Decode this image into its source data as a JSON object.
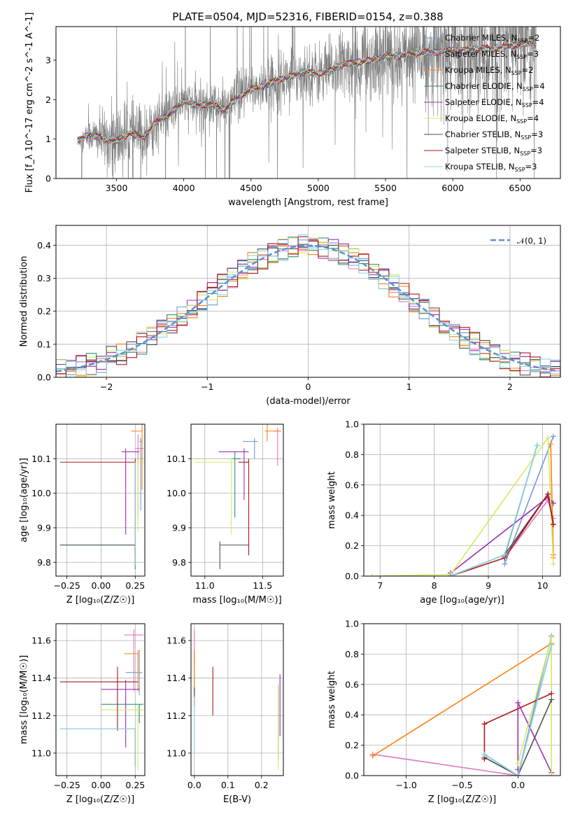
{
  "figure": {
    "title": "PLATE=0504, MJD=52316, FIBERID=0154, z=0.388"
  },
  "colors": {
    "Chabrier MILES": "#6f9bd8",
    "Salpeter MILES": "#e377c2",
    "Kroupa MILES": "#ff7f0e",
    "Chabrier ELODIE": "#2f8f76",
    "Salpeter ELODIE": "#9b30b0",
    "Kroupa ELODIE": "#d4ea62",
    "Chabrier STELIB": "#505050",
    "Salpeter STELIB": "#b0161a",
    "Kroupa STELIB": "#8ad4e3",
    "data_spectrum": "#7f7f7f"
  },
  "chart_data": [
    {
      "id": "spectrum",
      "type": "line",
      "xlabel": "wavelength [Angstrom, rest frame]",
      "ylabel": "Flux [f_λ 10^-17 erg cm^-2 s^-1 A^-1]",
      "xlim": [
        3050,
        6800
      ],
      "ylim": [
        0,
        3.85
      ],
      "xticks": [
        "3500",
        "4000",
        "4500",
        "5000",
        "5500",
        "6000",
        "6500"
      ],
      "yticks": [
        "0",
        "1",
        "2",
        "3"
      ],
      "grid": false,
      "legend_position": "upper-right",
      "legend": [
        {
          "name": "Chabrier MILES",
          "nssp": "2"
        },
        {
          "name": "Salpeter MILES",
          "nssp": "3"
        },
        {
          "name": "Kroupa MILES",
          "nssp": "2"
        },
        {
          "name": "Chabrier ELODIE",
          "nssp": "4"
        },
        {
          "name": "Salpeter ELODIE",
          "nssp": "4"
        },
        {
          "name": "Kroupa ELODIE",
          "nssp": "4"
        },
        {
          "name": "Chabrier STELIB",
          "nssp": "3"
        },
        {
          "name": "Salpeter STELIB",
          "nssp": "3"
        },
        {
          "name": "Kroupa STELIB",
          "nssp": "3"
        }
      ],
      "continuum": {
        "x": [
          3210,
          3300,
          3400,
          3500,
          3600,
          3700,
          3800,
          3900,
          4000,
          4100,
          4200,
          4300,
          4400,
          4500,
          4600,
          4700,
          4800,
          4900,
          5000,
          5100,
          5200,
          5300,
          5400,
          5500,
          5600,
          5700,
          5800,
          5900,
          6000,
          6100,
          6200,
          6300,
          6400,
          6500,
          6600
        ],
        "y": [
          0.95,
          1.1,
          1.0,
          0.95,
          1.15,
          1.05,
          1.45,
          1.65,
          1.95,
          1.85,
          1.9,
          1.75,
          2.05,
          2.25,
          2.35,
          2.5,
          2.6,
          2.7,
          2.65,
          2.75,
          2.9,
          2.95,
          3.0,
          3.1,
          3.1,
          3.15,
          3.2,
          3.2,
          3.25,
          3.25,
          3.3,
          3.3,
          3.35,
          3.4,
          3.45
        ]
      },
      "data_noise_envelope": {
        "x": [
          3210,
          3500,
          3800,
          4000,
          4500,
          5000,
          5500,
          6000,
          6600
        ],
        "sigma": [
          0.15,
          0.9,
          0.6,
          0.5,
          0.6,
          0.7,
          1.0,
          1.3,
          1.6
        ]
      }
    },
    {
      "id": "residuals",
      "type": "line",
      "xlabel": "(data-model)/error",
      "ylabel": "Normed distribution",
      "xlim": [
        -2.5,
        2.5
      ],
      "ylim": [
        0,
        0.46
      ],
      "xticks": [
        "−2",
        "−1",
        "0",
        "1",
        "2"
      ],
      "yticks": [
        "0.0",
        "0.1",
        "0.2",
        "0.3",
        "0.4"
      ],
      "grid": true,
      "legend_position": "upper-right",
      "legend_label": "𝒩(0, 1)",
      "gaussian": {
        "mu": 0,
        "sigma": 1
      },
      "histogram_bin_width": 0.1
    },
    {
      "id": "age_vs_Z",
      "type": "scatter",
      "xlabel": "Z [log₁₀(Z/Z☉)]",
      "ylabel": "age  [log₁₀(age/yr)]",
      "xlim": [
        -0.33,
        0.32
      ],
      "ylim": [
        9.76,
        10.2
      ],
      "xticks": [
        "−0.25",
        "0.00",
        "0.25"
      ],
      "yticks": [
        "9.8",
        "9.9",
        "10.0",
        "10.1"
      ],
      "grid": true,
      "points": [
        {
          "model": "Chabrier MILES",
          "x": 0.29,
          "y": 10.15,
          "xerr": [
            0.01,
            0.01
          ],
          "yerr": [
            0.2,
            0.01
          ]
        },
        {
          "model": "Salpeter MILES",
          "x": 0.27,
          "y": 10.13,
          "xerr": [
            0.02,
            0.04
          ],
          "yerr": [
            0.2,
            0.04
          ]
        },
        {
          "model": "Kroupa MILES",
          "x": 0.3,
          "y": 10.18,
          "xerr": [
            0.08,
            0.0
          ],
          "yerr": [
            0.17,
            0.02
          ]
        },
        {
          "model": "Chabrier ELODIE",
          "x": 0.25,
          "y": 9.85,
          "xerr": [
            0.55,
            0.0
          ],
          "yerr": [
            0.07,
            0.0
          ]
        },
        {
          "model": "Salpeter ELODIE",
          "x": 0.18,
          "y": 10.12,
          "xerr": [
            0.03,
            0.1
          ],
          "yerr": [
            0.24,
            0.01
          ]
        },
        {
          "model": "Kroupa ELODIE",
          "x": 0.27,
          "y": 10.09,
          "xerr": [
            0.0,
            0.05
          ],
          "yerr": [
            0.2,
            0.01
          ]
        },
        {
          "model": "Chabrier STELIB",
          "x": 0.25,
          "y": 9.85,
          "xerr": [
            0.55,
            0.0
          ],
          "yerr": [
            0.06,
            0.0
          ]
        },
        {
          "model": "Salpeter STELIB",
          "x": 0.25,
          "y": 10.09,
          "xerr": [
            0.55,
            0.0
          ],
          "yerr": [
            0.27,
            0.01
          ]
        },
        {
          "model": "Kroupa STELIB",
          "x": 0.25,
          "y": 10.09,
          "xerr": [
            0.0,
            0.0
          ],
          "yerr": [
            0.3,
            0.0
          ]
        }
      ]
    },
    {
      "id": "age_vs_mass",
      "type": "scatter",
      "xlabel": "mass [log₁₀(M/M☉)]",
      "ylabel": "",
      "xlim": [
        10.88,
        11.68
      ],
      "ylim": [
        9.76,
        10.2
      ],
      "xticks": [
        "11.0",
        "11.5"
      ],
      "yticks": [
        "9.8",
        "9.9",
        "10.0",
        "10.1"
      ],
      "grid": true,
      "points": [
        {
          "model": "Chabrier MILES",
          "x": 11.43,
          "y": 10.15,
          "xerr": [
            0.1,
            0.03
          ],
          "yerr": [
            0.05,
            0.01
          ]
        },
        {
          "model": "Salpeter MILES",
          "x": 11.63,
          "y": 10.18,
          "xerr": [
            0.03,
            0.03
          ],
          "yerr": [
            0.1,
            0.01
          ]
        },
        {
          "model": "Kroupa MILES",
          "x": 11.54,
          "y": 10.18,
          "xerr": [
            0.02,
            0.12
          ],
          "yerr": [
            0.03,
            0.02
          ]
        },
        {
          "model": "Chabrier ELODIE",
          "x": 11.26,
          "y": 10.1,
          "xerr": [
            0.02,
            0.05
          ],
          "yerr": [
            0.17,
            0.02
          ]
        },
        {
          "model": "Salpeter ELODIE",
          "x": 11.34,
          "y": 10.12,
          "xerr": [
            0.22,
            0.04
          ],
          "yerr": [
            0.14,
            0.01
          ]
        },
        {
          "model": "Kroupa ELODIE",
          "x": 11.23,
          "y": 10.09,
          "xerr": [
            0.32,
            0.02
          ],
          "yerr": [
            0.21,
            0.01
          ]
        },
        {
          "model": "Chabrier STELIB",
          "x": 11.13,
          "y": 9.85,
          "xerr": [
            0.0,
            0.25
          ],
          "yerr": [
            0.07,
            0.01
          ]
        },
        {
          "model": "Salpeter STELIB",
          "x": 11.38,
          "y": 10.09,
          "xerr": [
            0.09,
            0.0
          ],
          "yerr": [
            0.27,
            0.01
          ]
        },
        {
          "model": "Kroupa STELIB",
          "x": 11.13,
          "y": 9.85,
          "xerr": [
            0.0,
            0.0
          ],
          "yerr": [
            0.0,
            0.0
          ]
        }
      ]
    },
    {
      "id": "weight_vs_age",
      "type": "line",
      "xlabel": "age  [log₁₀(age/yr)]",
      "ylabel": "mass weight",
      "xlim": [
        6.7,
        10.33
      ],
      "ylim": [
        0,
        1
      ],
      "xticks": [
        "7",
        "8",
        "9",
        "10"
      ],
      "yticks": [
        "0.0",
        "0.2",
        "0.4",
        "0.6",
        "0.8",
        "1.0"
      ],
      "grid": true,
      "series": [
        {
          "model": "Chabrier MILES",
          "x": [
            9.3,
            10.2
          ],
          "y": [
            0.08,
            0.92
          ]
        },
        {
          "model": "Salpeter MILES",
          "x": [
            9.3,
            10.1,
            10.2
          ],
          "y": [
            0.12,
            0.5,
            0.38
          ]
        },
        {
          "model": "Kroupa MILES",
          "x": [
            10.15,
            10.2,
            10.2
          ],
          "y": [
            0.87,
            0.14,
            0.12
          ]
        },
        {
          "model": "Chabrier ELODIE",
          "x": [
            9.3,
            9.9
          ],
          "y": [
            0.13,
            0.86
          ]
        },
        {
          "model": "Salpeter ELODIE",
          "x": [
            8.3,
            10.1,
            10.2
          ],
          "y": [
            0.02,
            0.52,
            0.48
          ]
        },
        {
          "model": "Kroupa ELODIE",
          "x": [
            6.85,
            8.3,
            10.1,
            10.2
          ],
          "y": [
            0.0,
            0.01,
            0.91,
            0.08
          ]
        },
        {
          "model": "Chabrier STELIB",
          "x": [
            8.3,
            9.3,
            10.1,
            10.2
          ],
          "y": [
            0.0,
            0.14,
            0.54,
            0.34
          ]
        },
        {
          "model": "Salpeter STELIB",
          "x": [
            8.3,
            9.3,
            10.1,
            10.2
          ],
          "y": [
            0.0,
            0.12,
            0.54,
            0.34
          ]
        },
        {
          "model": "Kroupa STELIB",
          "x": [
            8.3,
            9.3,
            9.9
          ],
          "y": [
            0.0,
            0.14,
            0.86
          ]
        }
      ]
    },
    {
      "id": "mass_vs_Z",
      "type": "scatter",
      "xlabel": "Z [log₁₀(Z/Z☉)]",
      "ylabel": "mass [log₁₀(M/M☉)]",
      "xlim": [
        -0.33,
        0.32
      ],
      "ylim": [
        10.88,
        11.69
      ],
      "xticks": [
        "−0.25",
        "0.00",
        "0.25"
      ],
      "yticks": [
        "11.0",
        "11.2",
        "11.4",
        "11.6"
      ],
      "grid": true,
      "points": [
        {
          "model": "Chabrier MILES",
          "x": 0.28,
          "y": 11.43,
          "xerr": [
            0.1,
            0.02
          ],
          "yerr": [
            0.12,
            0.12
          ]
        },
        {
          "model": "Salpeter MILES",
          "x": 0.24,
          "y": 11.63,
          "xerr": [
            0.07,
            0.07
          ],
          "yerr": [
            0.3,
            0.03
          ]
        },
        {
          "model": "Kroupa MILES",
          "x": 0.27,
          "y": 11.53,
          "xerr": [
            0.1,
            0.0
          ],
          "yerr": [
            0.2,
            0.02
          ]
        },
        {
          "model": "Chabrier ELODIE",
          "x": 0.28,
          "y": 11.26,
          "xerr": [
            0.28,
            0.03
          ],
          "yerr": [
            0.1,
            0.0
          ]
        },
        {
          "model": "Salpeter ELODIE",
          "x": 0.18,
          "y": 11.34,
          "xerr": [
            0.18,
            0.1
          ],
          "yerr": [
            0.31,
            0.05
          ]
        },
        {
          "model": "Kroupa ELODIE",
          "x": 0.27,
          "y": 11.23,
          "xerr": [
            0.27,
            0.05
          ],
          "yerr": [
            0.32,
            0.02
          ]
        },
        {
          "model": "Chabrier STELIB",
          "x": 0.25,
          "y": 11.13,
          "xerr": [
            0.55,
            0.0
          ],
          "yerr": [
            0.2,
            0.0
          ]
        },
        {
          "model": "Salpeter STELIB",
          "x": 0.12,
          "y": 11.38,
          "xerr": [
            0.42,
            0.15
          ],
          "yerr": [
            0.26,
            0.08
          ]
        },
        {
          "model": "Kroupa STELIB",
          "x": 0.25,
          "y": 11.13,
          "xerr": [
            0.55,
            0.0
          ],
          "yerr": [
            0.22,
            0.0
          ]
        }
      ]
    },
    {
      "id": "mass_vs_ebv",
      "type": "scatter",
      "xlabel": "E(B-V)",
      "ylabel": "",
      "xlim": [
        -0.01,
        0.265
      ],
      "ylim": [
        10.88,
        11.69
      ],
      "xticks": [
        "0.0",
        "0.1",
        "0.2"
      ],
      "yticks": [
        "11.0",
        "11.2",
        "11.4",
        "11.6"
      ],
      "grid": true,
      "points": [
        {
          "model": "Chabrier MILES",
          "x": 0.0,
          "y": 11.43,
          "yerr": [
            0.12,
            0.12
          ]
        },
        {
          "model": "Salpeter MILES",
          "x": 0.0,
          "y": 11.63,
          "yerr": [
            0.15,
            0.03
          ]
        },
        {
          "model": "Kroupa MILES",
          "x": 0.0,
          "y": 11.5,
          "yerr": [
            0.18,
            0.05
          ]
        },
        {
          "model": "Chabrier ELODIE",
          "x": 0.25,
          "y": 11.26,
          "yerr": [
            0.3,
            0.1
          ]
        },
        {
          "model": "Salpeter ELODIE",
          "x": 0.255,
          "y": 11.34,
          "yerr": [
            0.25,
            0.08
          ]
        },
        {
          "model": "Kroupa ELODIE",
          "x": 0.25,
          "y": 11.23,
          "yerr": [
            0.32,
            0.14
          ]
        },
        {
          "model": "Chabrier STELIB",
          "x": 0.0,
          "y": 11.3,
          "yerr": [
            0.05,
            0.05
          ]
        },
        {
          "model": "Salpeter STELIB",
          "x": 0.055,
          "y": 11.32,
          "yerr": [
            0.12,
            0.14
          ]
        },
        {
          "model": "Kroupa STELIB",
          "x": 0.0,
          "y": 11.25,
          "yerr": [
            0.25,
            0.05
          ]
        }
      ]
    },
    {
      "id": "weight_vs_Z",
      "type": "line",
      "xlabel": "Z [log₁₀(Z/Z☉)]",
      "ylabel": "mass weight",
      "xlim": [
        -1.38,
        0.38
      ],
      "ylim": [
        0,
        1
      ],
      "xticks": [
        "−1.0",
        "−0.5",
        "0.0"
      ],
      "yticks": [
        "0.0",
        "0.2",
        "0.4",
        "0.6",
        "0.8",
        "1.0"
      ],
      "grid": true,
      "series": [
        {
          "model": "Chabrier MILES",
          "x": [
            -0.3,
            0.0,
            0.3
          ],
          "y": [
            0.14,
            0.0,
            0.92
          ]
        },
        {
          "model": "Salpeter MILES",
          "x": [
            -1.3,
            0.0,
            0.3
          ],
          "y": [
            0.14,
            0.0,
            0.86
          ]
        },
        {
          "model": "Kroupa MILES",
          "x": [
            -1.3,
            0.3
          ],
          "y": [
            0.13,
            0.87
          ]
        },
        {
          "model": "Chabrier ELODIE",
          "x": [
            -0.3,
            0.0,
            0.3
          ],
          "y": [
            0.14,
            0.0,
            0.86
          ]
        },
        {
          "model": "Salpeter ELODIE",
          "x": [
            0.0,
            0.0,
            0.3
          ],
          "y": [
            0.04,
            0.48,
            0.02
          ]
        },
        {
          "model": "Kroupa ELODIE",
          "x": [
            0.0,
            0.3,
            0.3
          ],
          "y": [
            0.08,
            0.91,
            0.01
          ]
        },
        {
          "model": "Chabrier STELIB",
          "x": [
            -0.3,
            0.0,
            0.3
          ],
          "y": [
            0.12,
            0.0,
            0.5
          ]
        },
        {
          "model": "Salpeter STELIB",
          "x": [
            -0.3,
            -0.3,
            0.3
          ],
          "y": [
            0.11,
            0.34,
            0.54
          ]
        },
        {
          "model": "Kroupa STELIB",
          "x": [
            -0.3,
            0.0,
            0.3
          ],
          "y": [
            0.14,
            0.0,
            0.86
          ]
        }
      ]
    }
  ]
}
